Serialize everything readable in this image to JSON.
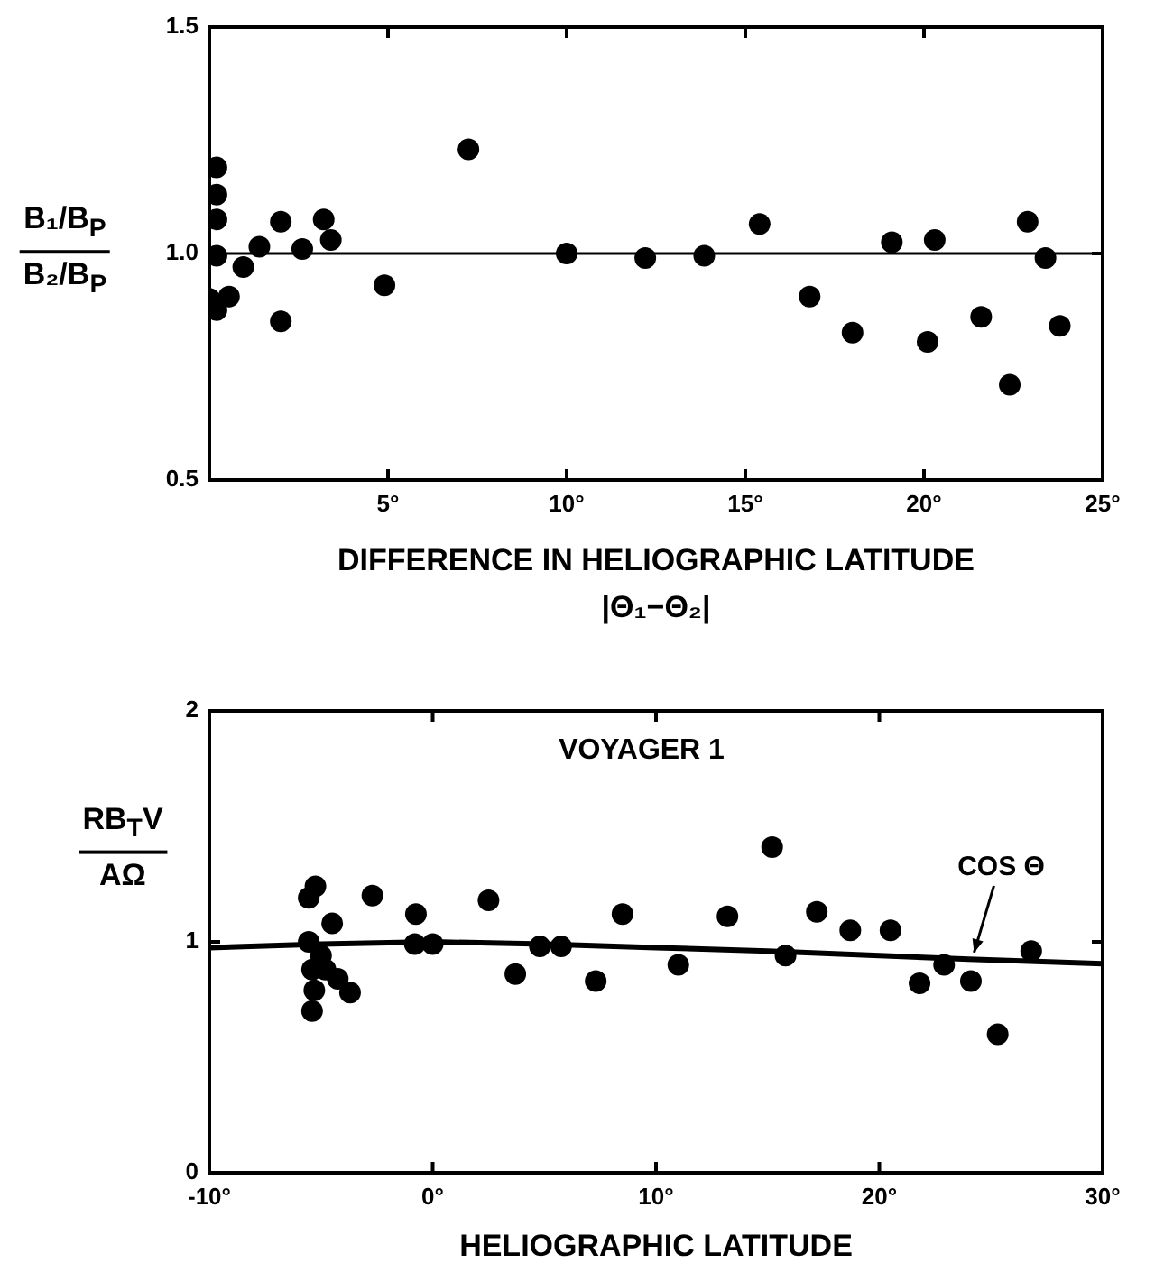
{
  "chart_data": [
    {
      "type": "scatter",
      "xlabel": "DIFFERENCE IN HELIOGRAPHIC LATITUDE\n|Θ₁−Θ₂|",
      "ylabel": "B₁/B$_{P}$\nB₂/B$_{P}$",
      "xlim": [
        0,
        25
      ],
      "ylim": [
        0.5,
        1.5
      ],
      "xticks": [
        {
          "value": 0,
          "label": null
        },
        {
          "value": 5,
          "label": "5°"
        },
        {
          "value": 10,
          "label": "10°"
        },
        {
          "value": 15,
          "label": "15°"
        },
        {
          "value": 20,
          "label": "20°"
        },
        {
          "value": 25,
          "label": "25°"
        }
      ],
      "yticks": [
        0.5,
        {
          "value": 1,
          "label": "1.0"
        },
        1.5
      ],
      "grid": false,
      "legend": false,
      "marker": "circle",
      "ref_lines": [
        {
          "axis": "y",
          "value": 1,
          "color": "#000000"
        }
      ],
      "series": [
        {
          "type": "scatter",
          "color": "#000000",
          "x": [
            0.2,
            0.2,
            0.2,
            0.2,
            0,
            0.2,
            0.55,
            0.95,
            1.4,
            2,
            2,
            2.6,
            3.2,
            3.4,
            4.9,
            7.25,
            10,
            12.2,
            13.85,
            15.4,
            16.8,
            18,
            19.1,
            20.1,
            20.3,
            21.6,
            22.4,
            22.9,
            23.4,
            23.8
          ],
          "values": [
            1.19,
            1.13,
            1.075,
            0.995,
            0.9,
            0.875,
            0.905,
            0.97,
            1.015,
            1.07,
            0.85,
            1.01,
            1.075,
            1.03,
            0.93,
            1.23,
            1,
            0.99,
            0.995,
            1.065,
            0.905,
            0.825,
            1.025,
            0.805,
            1.03,
            0.86,
            0.71,
            1.07,
            0.99,
            0.84
          ]
        }
      ]
    },
    {
      "type": "scatter",
      "title": "VOYAGER 1",
      "xlabel": "HELIOGRAPHIC LATITUDE",
      "ylabel": "RB$_{T}$V\nAΩ",
      "xlim": [
        -10,
        30
      ],
      "ylim": [
        0,
        2
      ],
      "xticks": [
        {
          "value": -10,
          "label": "-10°"
        },
        {
          "value": 0,
          "label": "0°"
        },
        {
          "value": 10,
          "label": "10°"
        },
        {
          "value": 20,
          "label": "20°"
        },
        {
          "value": 30,
          "label": "30°"
        }
      ],
      "yticks": [
        0,
        1,
        2
      ],
      "grid": false,
      "legend": false,
      "marker": "circle",
      "annotations": [
        {
          "text": "COS Θ",
          "x": 24,
          "y": 0.93
        }
      ],
      "series": [
        {
          "type": "scatter",
          "color": "#000000",
          "x": [
            -5.55,
            -5.25,
            -2.7,
            -5.55,
            -4.5,
            -5,
            -5.4,
            -4.8,
            -4.25,
            -5.3,
            -3.7,
            -5.4,
            -0.75,
            -0.8,
            0,
            2.5,
            3.7,
            4.8,
            5.75,
            7.3,
            8.5,
            11,
            13.2,
            15.2,
            15.8,
            17.2,
            18.7,
            20.5,
            21.8,
            22.9,
            24.1,
            25.3,
            26.8
          ],
          "values": [
            1.19,
            1.24,
            1.2,
            1,
            1.08,
            0.94,
            0.88,
            0.88,
            0.84,
            0.79,
            0.78,
            0.7,
            1.12,
            0.99,
            0.99,
            1.18,
            0.86,
            0.98,
            0.98,
            0.83,
            1.12,
            0.9,
            1.11,
            1.41,
            0.94,
            1.13,
            1.05,
            1.05,
            0.82,
            0.9,
            0.83,
            0.6,
            0.96
          ]
        },
        {
          "type": "line",
          "color": "#000000",
          "marker": "none",
          "x": [
            -10,
            -5,
            0,
            5,
            10,
            15,
            20,
            24,
            30
          ],
          "values": [
            0.975,
            0.99,
            1,
            0.99,
            0.975,
            0.96,
            0.94,
            0.925,
            0.905
          ]
        }
      ]
    }
  ]
}
